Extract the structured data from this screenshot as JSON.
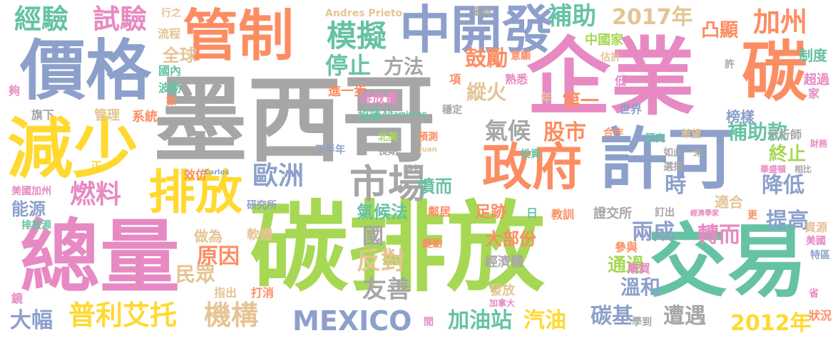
{
  "palette": {
    "gray": "#a6a6a6",
    "pink": "#e78ac3",
    "green": "#a6d854",
    "blue": "#8da0cb",
    "orange": "#fc8d62",
    "teal": "#66c2a5",
    "yellow": "#ffd92f",
    "tan": "#e5c494"
  },
  "words": [
    {
      "text": "墨西哥",
      "color": "gray"
    },
    {
      "text": "企業",
      "color": "pink"
    },
    {
      "text": "碳排放",
      "color": "green"
    },
    {
      "text": "總量",
      "color": "pink"
    },
    {
      "text": "交易",
      "color": "teal"
    },
    {
      "text": "價格",
      "color": "blue"
    },
    {
      "text": "減少",
      "color": "yellow"
    },
    {
      "text": "管制",
      "color": "orange"
    },
    {
      "text": "中開發",
      "color": "blue"
    },
    {
      "text": "碳",
      "color": "orange"
    },
    {
      "text": "許可",
      "color": "blue"
    },
    {
      "text": "政府",
      "color": "orange"
    },
    {
      "text": "排放",
      "color": "yellow"
    },
    {
      "text": "市場",
      "color": "gray"
    },
    {
      "text": "經驗",
      "color": "teal"
    },
    {
      "text": "試驗",
      "color": "pink"
    },
    {
      "text": "模擬",
      "color": "teal"
    },
    {
      "text": "補助",
      "color": "teal"
    },
    {
      "text": "2017年",
      "color": "tan"
    },
    {
      "text": "凸顯",
      "color": "orange"
    },
    {
      "text": "加州",
      "color": "orange"
    },
    {
      "text": "全球",
      "color": "tan"
    },
    {
      "text": "停止",
      "color": "teal"
    },
    {
      "text": "方法",
      "color": "gray"
    },
    {
      "text": "鼓勵",
      "color": "orange"
    },
    {
      "text": "中國家",
      "color": "green"
    },
    {
      "text": "估計",
      "color": "tan"
    },
    {
      "text": "制度",
      "color": "teal"
    },
    {
      "text": "行之",
      "color": "tan"
    },
    {
      "text": "Andres Prieto",
      "color": "tan"
    },
    {
      "text": "最終",
      "color": "gray"
    },
    {
      "text": "流程",
      "color": "tan"
    },
    {
      "text": "國內",
      "color": "teal"
    },
    {
      "text": "項",
      "color": "orange"
    },
    {
      "text": "意願",
      "color": "orange"
    },
    {
      "text": "熟悉",
      "color": "pink"
    },
    {
      "text": "許",
      "color": "gray"
    },
    {
      "text": "超過",
      "color": "pink"
    },
    {
      "text": "波動",
      "color": "teal"
    },
    {
      "text": "進一步",
      "color": "orange"
    },
    {
      "text": "數",
      "color": "orange"
    },
    {
      "text": "排放量",
      "color": "pink"
    },
    {
      "text": "協議",
      "color": "teal"
    },
    {
      "text": "縱火",
      "color": "tan"
    },
    {
      "text": "第一",
      "color": "orange"
    },
    {
      "text": "年",
      "color": "tan"
    },
    {
      "text": "世界",
      "color": "blue"
    },
    {
      "text": "低",
      "color": "pink"
    },
    {
      "text": "家",
      "color": "pink"
    },
    {
      "text": "夠",
      "color": "pink"
    },
    {
      "text": "旗下",
      "color": "gray"
    },
    {
      "text": "管理",
      "color": "tan"
    },
    {
      "text": "系統",
      "color": "orange"
    },
    {
      "text": "Altamirano",
      "color": "teal"
    },
    {
      "text": "穩定",
      "color": "gray"
    },
    {
      "text": "氣候",
      "color": "gray"
    },
    {
      "text": "股市",
      "color": "orange"
    },
    {
      "text": "合作",
      "color": "orange"
    },
    {
      "text": "希望",
      "color": "tan"
    },
    {
      "text": "榜樣",
      "color": "blue"
    },
    {
      "text": "補助款",
      "color": "teal"
    },
    {
      "text": "預測",
      "color": "orange"
    },
    {
      "text": "北美",
      "color": "green"
    },
    {
      "text": "研究",
      "color": "teal"
    },
    {
      "text": "分析師",
      "color": "gray"
    },
    {
      "text": "財務",
      "color": "pink"
    },
    {
      "text": "下半年",
      "color": "blue"
    },
    {
      "text": "長期",
      "color": "gray"
    },
    {
      "text": "Juan",
      "color": "tan"
    },
    {
      "text": "投資",
      "color": "teal"
    },
    {
      "text": "如此一來",
      "color": "gray"
    },
    {
      "text": "終止",
      "color": "green"
    },
    {
      "text": "正",
      "color": "yellow"
    },
    {
      "text": "燃料",
      "color": "pink"
    },
    {
      "text": "歐洲",
      "color": "blue"
    },
    {
      "text": "選擇",
      "color": "gray"
    },
    {
      "text": "華盛頓",
      "color": "pink"
    },
    {
      "text": "相比",
      "color": "gray"
    },
    {
      "text": "效仿",
      "color": "orange"
    },
    {
      "text": "Carlos",
      "color": "blue"
    },
    {
      "text": "簽訂",
      "color": "gray"
    },
    {
      "text": "憤而",
      "color": "teal"
    },
    {
      "text": "時",
      "color": "blue"
    },
    {
      "text": "降低",
      "color": "blue"
    },
    {
      "text": "美國加州",
      "color": "pink"
    },
    {
      "text": "能源",
      "color": "blue"
    },
    {
      "text": "研究所",
      "color": "blue"
    },
    {
      "text": "氣候法",
      "color": "teal"
    },
    {
      "text": "鄰居",
      "color": "orange"
    },
    {
      "text": "足跡",
      "color": "orange"
    },
    {
      "text": "日",
      "color": "teal"
    },
    {
      "text": "教訓",
      "color": "orange"
    },
    {
      "text": "證交所",
      "color": "gray"
    },
    {
      "text": "訂出",
      "color": "gray"
    },
    {
      "text": "適合",
      "color": "tan"
    },
    {
      "text": "經濟學家",
      "color": "pink"
    },
    {
      "text": "更",
      "color": "orange"
    },
    {
      "text": "提高",
      "color": "blue"
    },
    {
      "text": "排放源",
      "color": "teal"
    },
    {
      "text": "做為",
      "color": "tan"
    },
    {
      "text": "軟體",
      "color": "tan"
    },
    {
      "text": "國",
      "color": "gray"
    },
    {
      "text": "大部份",
      "color": "orange"
    },
    {
      "text": "兩成",
      "color": "blue"
    },
    {
      "text": "轉而",
      "color": "pink"
    },
    {
      "text": "資源",
      "color": "tan"
    },
    {
      "text": "美國",
      "color": "pink"
    },
    {
      "text": "特區",
      "color": "blue"
    },
    {
      "text": "原因",
      "color": "orange"
    },
    {
      "text": "民眾",
      "color": "tan"
    },
    {
      "text": "反對",
      "color": "tan"
    },
    {
      "text": "變動",
      "color": "orange"
    },
    {
      "text": "參與",
      "color": "orange"
    },
    {
      "text": "通過",
      "color": "green"
    },
    {
      "text": "經濟體",
      "color": "gray"
    },
    {
      "text": "溫和",
      "color": "blue"
    },
    {
      "text": "購買",
      "color": "pink"
    },
    {
      "text": "友善",
      "color": "gray"
    },
    {
      "text": "鏡",
      "color": "pink"
    },
    {
      "text": "指出",
      "color": "tan"
    },
    {
      "text": "打消",
      "color": "orange"
    },
    {
      "text": "加拿大",
      "color": "pink"
    },
    {
      "text": "發放",
      "color": "tan"
    },
    {
      "text": "省",
      "color": "pink"
    },
    {
      "text": "大幅",
      "color": "blue"
    },
    {
      "text": "普利艾托",
      "color": "yellow"
    },
    {
      "text": "機構",
      "color": "tan"
    },
    {
      "text": "MEXICO",
      "color": "blue"
    },
    {
      "text": "加油站",
      "color": "teal"
    },
    {
      "text": "汽油",
      "color": "yellow"
    },
    {
      "text": "碳基",
      "color": "blue"
    },
    {
      "text": "遭遇",
      "color": "gray"
    },
    {
      "text": "2012年",
      "color": "yellow"
    },
    {
      "text": "學到",
      "color": "gray"
    },
    {
      "text": "狀況",
      "color": "orange"
    },
    {
      "text": "間",
      "color": "pink"
    }
  ]
}
